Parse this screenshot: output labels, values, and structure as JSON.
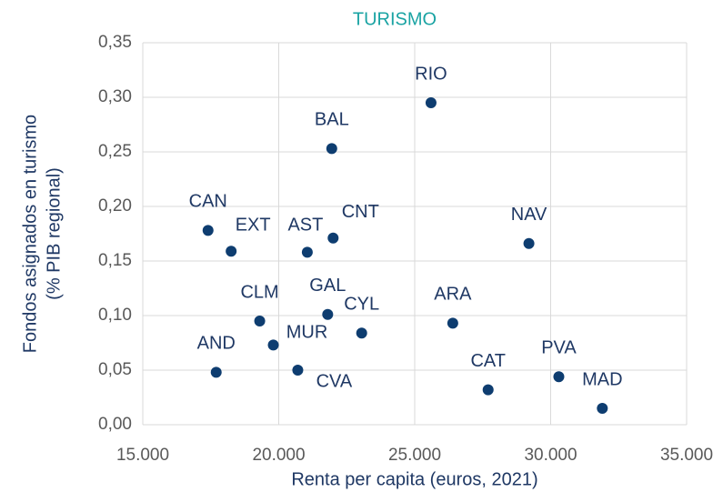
{
  "chart_data": {
    "type": "scatter",
    "title": "TURISMO",
    "x_label": "Renta per capita (euros, 2021)",
    "y_label": [
      "Fondos asignados en turismo",
      "(% PIB regional)"
    ],
    "labels": [
      "CAN",
      "EXT",
      "AST",
      "CNT",
      "BAL",
      "RIO",
      "NAV",
      "ARA",
      "CYL",
      "GAL",
      "CLM",
      "MUR",
      "AND",
      "CVA",
      "CAT",
      "PVA",
      "MAD"
    ],
    "x": [
      17400,
      18250,
      21050,
      22000,
      21950,
      25600,
      29200,
      26400,
      23050,
      21800,
      19300,
      19800,
      17700,
      20700,
      27700,
      30300,
      31900
    ],
    "y": [
      0.178,
      0.159,
      0.158,
      0.171,
      0.253,
      0.295,
      0.166,
      0.093,
      0.084,
      0.101,
      0.095,
      0.073,
      0.048,
      0.05,
      0.032,
      0.044,
      0.015
    ],
    "color": "#0e3d70",
    "xlim": [
      15000,
      35000
    ],
    "xticks": [
      {
        "value": 15000,
        "label": "15.000"
      },
      {
        "value": 20000,
        "label": "20.000"
      },
      {
        "value": 25000,
        "label": "25.000"
      },
      {
        "value": 30000,
        "label": "30.000"
      },
      {
        "value": 35000,
        "label": "35.000"
      }
    ],
    "ylim": [
      0,
      0.35
    ],
    "yticks": [
      {
        "value": 0,
        "label": "0,00"
      },
      {
        "value": 0.05,
        "label": "0,05"
      },
      {
        "value": 0.1,
        "label": "0,10"
      },
      {
        "value": 0.15,
        "label": "0,15"
      },
      {
        "value": 0.2,
        "label": "0,20"
      },
      {
        "value": 0.25,
        "label": "0,25"
      },
      {
        "value": 0.3,
        "label": "0,30"
      },
      {
        "value": 0.35,
        "label": "0,35"
      }
    ],
    "grid": true
  }
}
